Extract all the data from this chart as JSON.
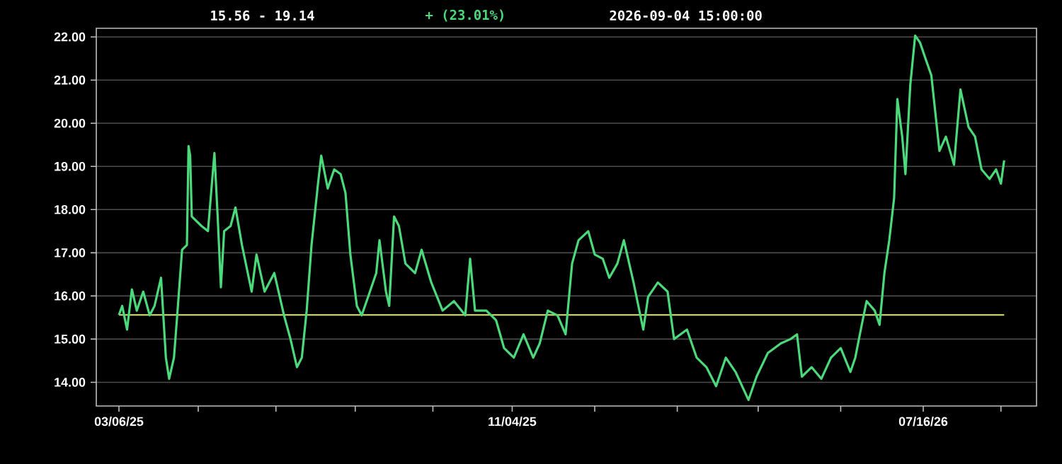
{
  "chart_data": {
    "type": "line",
    "color": "#4cd97b",
    "x": [
      "2025-03-06",
      "2025-03-08",
      "2025-03-11",
      "2025-03-14",
      "2025-03-17",
      "2025-03-21",
      "2025-03-25",
      "2025-03-28",
      "2025-04-01",
      "2025-04-04",
      "2025-04-06",
      "2025-04-09",
      "2025-04-11",
      "2025-04-14",
      "2025-04-17",
      "2025-04-18",
      "2025-04-19",
      "2025-04-20",
      "2025-04-26",
      "2025-04-30",
      "2025-05-04",
      "2025-05-06",
      "2025-05-08",
      "2025-05-10",
      "2025-05-14",
      "2025-05-17",
      "2025-05-21",
      "2025-05-27",
      "2025-05-30",
      "2025-06-04",
      "2025-06-10",
      "2025-06-16",
      "2025-06-20",
      "2025-06-24",
      "2025-06-27",
      "2025-06-30",
      "2025-07-03",
      "2025-07-07",
      "2025-07-09",
      "2025-07-13",
      "2025-07-17",
      "2025-07-21",
      "2025-07-24",
      "2025-07-27",
      "2025-07-31",
      "2025-08-03",
      "2025-08-07",
      "2025-08-12",
      "2025-08-14",
      "2025-08-18",
      "2025-08-20",
      "2025-08-23",
      "2025-08-26",
      "2025-08-30",
      "2025-09-05",
      "2025-09-09",
      "2025-09-15",
      "2025-09-22",
      "2025-09-29",
      "2025-10-06",
      "2025-10-09",
      "2025-10-12",
      "2025-10-19",
      "2025-10-25",
      "2025-10-30",
      "2025-11-05",
      "2025-11-11",
      "2025-11-17",
      "2025-11-21",
      "2025-11-26",
      "2025-12-02",
      "2025-12-07",
      "2025-12-11",
      "2025-12-15",
      "2025-12-21",
      "2025-12-25",
      "2025-12-30",
      "2026-01-03",
      "2026-01-08",
      "2026-01-12",
      "2026-01-18",
      "2026-01-24",
      "2026-01-27",
      "2026-02-02",
      "2026-02-08",
      "2026-02-12",
      "2026-02-20",
      "2026-02-26",
      "2026-03-04",
      "2026-03-10",
      "2026-03-16",
      "2026-03-22",
      "2026-03-30",
      "2026-04-04",
      "2026-04-11",
      "2026-04-19",
      "2026-04-25",
      "2026-04-29",
      "2026-05-02",
      "2026-05-08",
      "2026-05-14",
      "2026-05-20",
      "2026-05-26",
      "2026-06-01",
      "2026-06-04",
      "2026-06-08",
      "2026-06-11",
      "2026-06-16",
      "2026-06-19",
      "2026-06-22",
      "2026-06-25",
      "2026-06-28",
      "2026-06-30",
      "2026-07-03",
      "2026-07-05",
      "2026-07-08",
      "2026-07-11",
      "2026-07-14",
      "2026-07-17",
      "2026-07-21",
      "2026-07-26",
      "2026-07-30",
      "2026-08-04",
      "2026-08-08",
      "2026-08-13",
      "2026-08-17",
      "2026-08-21",
      "2026-08-26",
      "2026-08-30",
      "2026-09-02",
      "2026-09-04"
    ],
    "values": [
      15.56,
      15.77,
      15.22,
      16.15,
      15.66,
      16.1,
      15.55,
      15.77,
      16.42,
      14.57,
      14.08,
      14.57,
      15.55,
      17.07,
      17.18,
      19.47,
      19.25,
      17.84,
      17.62,
      17.5,
      19.31,
      17.84,
      16.2,
      17.5,
      17.62,
      18.05,
      17.18,
      16.1,
      16.96,
      16.1,
      16.53,
      15.55,
      15.0,
      14.35,
      14.57,
      15.66,
      17.18,
      18.6,
      19.25,
      18.49,
      18.93,
      18.82,
      18.38,
      16.96,
      15.77,
      15.55,
      15.98,
      16.53,
      17.29,
      16.1,
      15.77,
      17.84,
      17.62,
      16.75,
      16.53,
      17.07,
      16.31,
      15.66,
      15.88,
      15.55,
      16.86,
      15.66,
      15.66,
      15.44,
      14.79,
      14.57,
      15.11,
      14.57,
      14.9,
      15.66,
      15.55,
      15.11,
      16.75,
      17.29,
      17.5,
      16.96,
      16.86,
      16.42,
      16.75,
      17.29,
      16.31,
      15.22,
      15.98,
      16.31,
      16.1,
      15.0,
      15.22,
      14.57,
      14.35,
      13.91,
      14.57,
      14.24,
      13.59,
      14.13,
      14.68,
      14.9,
      15.0,
      15.11,
      14.13,
      14.35,
      14.08,
      14.57,
      14.79,
      14.24,
      14.57,
      15.33,
      15.88,
      15.66,
      15.33,
      16.53,
      17.29,
      18.27,
      20.56,
      19.69,
      18.82,
      20.89,
      22.03,
      21.87,
      21.54,
      21.11,
      19.36,
      19.69,
      19.04,
      20.78,
      19.91,
      19.69,
      18.93,
      18.71,
      18.93,
      18.6,
      19.14
    ],
    "xlim": [
      "2025-02-20",
      "2026-09-24"
    ],
    "xticks": [
      {
        "value": "2025-03-06",
        "label": "03/06/25"
      },
      {
        "value": "2025-04-24",
        "label": null
      },
      {
        "value": "2025-06-11",
        "label": null
      },
      {
        "value": "2025-07-30",
        "label": null
      },
      {
        "value": "2025-09-16",
        "label": null
      },
      {
        "value": "2025-11-04",
        "label": "11/04/25"
      },
      {
        "value": "2025-12-25",
        "label": null
      },
      {
        "value": "2026-02-14",
        "label": null
      },
      {
        "value": "2026-04-05",
        "label": null
      },
      {
        "value": "2026-05-26",
        "label": null
      },
      {
        "value": "2026-07-16",
        "label": "07/16/26"
      },
      {
        "value": "2026-09-02",
        "label": null
      }
    ],
    "ylim": [
      13.45,
      22.2
    ],
    "yticks": [
      {
        "value": 14,
        "label": "14.00"
      },
      {
        "value": 15,
        "label": "15.00"
      },
      {
        "value": 16,
        "label": "16.00"
      },
      {
        "value": 17,
        "label": "17.00"
      },
      {
        "value": 18,
        "label": "18.00"
      },
      {
        "value": 19,
        "label": "19.00"
      },
      {
        "value": 20,
        "label": "20.00"
      },
      {
        "value": 21,
        "label": "21.00"
      },
      {
        "value": 22,
        "label": "22.00"
      }
    ],
    "grid": "y",
    "ref_lines": [
      {
        "axis": "y",
        "value": 15.56,
        "color": "#dfe67a"
      }
    ],
    "annotations": [
      "15.56 - 19.14",
      "+ (23.01%)",
      "2026-09-04  15:00:00"
    ]
  }
}
